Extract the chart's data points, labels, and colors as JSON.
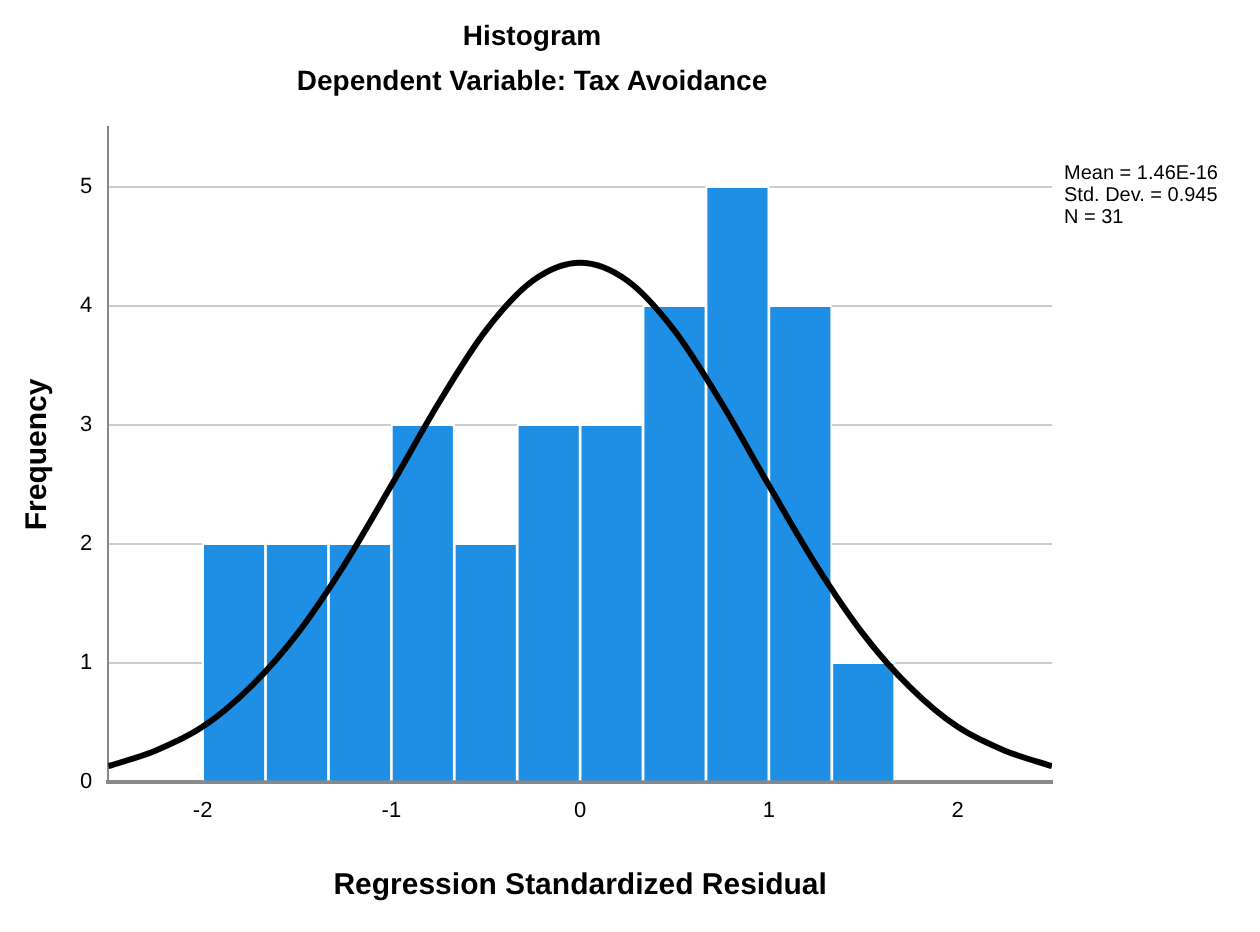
{
  "chart_data": {
    "type": "histogram",
    "title": "Histogram",
    "subtitle": "Dependent Variable: Tax Avoidance",
    "xlabel": "Regression Standardized Residual",
    "ylabel": "Frequency",
    "bins": [
      -2,
      -1.667,
      -1.333,
      -1,
      -0.667,
      -0.333,
      0,
      0.333,
      0.667,
      1,
      1.333,
      1.667
    ],
    "series": [
      {
        "color": "#1f8fe6",
        "values": [
          2,
          2,
          2,
          3,
          2,
          3,
          3,
          4,
          5,
          4,
          1
        ]
      },
      {
        "type": "line",
        "color": "#000000",
        "x": [
          -2.5,
          -2.25,
          -2,
          -1.75,
          -1.5,
          -1.25,
          -1,
          -0.75,
          -0.5,
          -0.25,
          0,
          0.25,
          0.5,
          0.75,
          1,
          1.25,
          1.5,
          1.75,
          2,
          2.25,
          2.5
        ],
        "values": [
          0.13,
          0.26,
          0.46,
          0.79,
          1.24,
          1.82,
          2.49,
          3.18,
          3.79,
          4.21,
          4.36,
          4.21,
          3.79,
          3.18,
          2.49,
          1.82,
          1.24,
          0.79,
          0.46,
          0.26,
          0.13
        ]
      }
    ],
    "xlim": [
      -2.5,
      2.5
    ],
    "xticks": [
      -2,
      -1,
      0,
      1,
      2
    ],
    "ylim": [
      0,
      5.5
    ],
    "yticks": [
      0,
      1,
      2,
      3,
      4,
      5
    ],
    "grid": "y",
    "legend": false,
    "marker": "none",
    "line_style": "solid",
    "annotations": [
      "Mean = 1.46E-16",
      "Std. Dev. = 0.945",
      "N = 31"
    ]
  }
}
